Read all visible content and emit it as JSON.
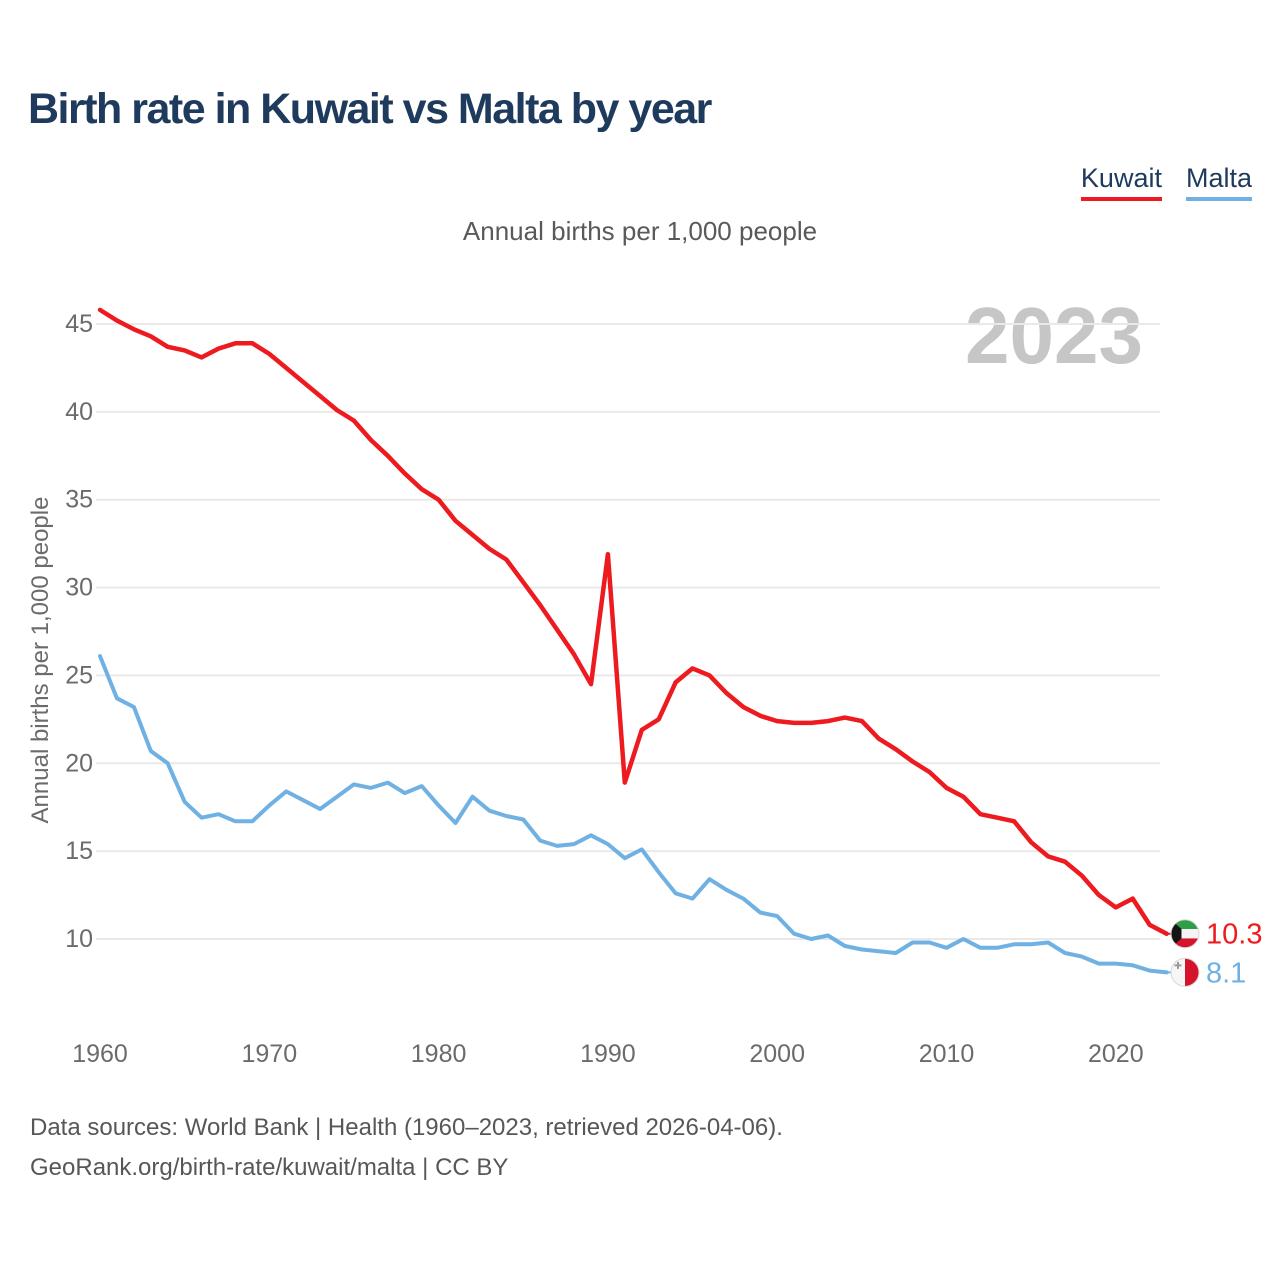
{
  "title": "Birth rate in Kuwait vs Malta by year",
  "subtitle": "Annual births per 1,000 people",
  "watermark": "2023",
  "legend": {
    "kuwait_label": "Kuwait",
    "malta_label": "Malta"
  },
  "footer": {
    "line1": "Data sources: World Bank | Health (1960–2023, retrieved 2026-04-06).",
    "line2": "GeoRank.org/birth-rate/kuwait/malta | CC BY"
  },
  "colors": {
    "kuwait_red": "#ed1b1f",
    "malta_blue": "#6fb1e3",
    "title_navy": "#1e3a5c",
    "axis_gray": "#6b6b6b",
    "grid_gray": "#e9e9e9",
    "watermark_gray": "#c6c6c6"
  },
  "chart_data": {
    "type": "line",
    "title": "Birth rate in Kuwait vs Malta by year",
    "ylabel": "Annual births per 1,000 people",
    "xlabel": "",
    "grid": true,
    "legend_position": "top-right",
    "xlim": [
      1960,
      2023
    ],
    "ylim": [
      8,
      46.5
    ],
    "x_ticks": [
      1960,
      1970,
      1980,
      1990,
      2000,
      2010,
      2020
    ],
    "y_ticks": [
      10,
      15,
      20,
      25,
      30,
      35,
      40,
      45
    ],
    "x": [
      1960,
      1961,
      1962,
      1963,
      1964,
      1965,
      1966,
      1967,
      1968,
      1969,
      1970,
      1971,
      1972,
      1973,
      1974,
      1975,
      1976,
      1977,
      1978,
      1979,
      1980,
      1981,
      1982,
      1983,
      1984,
      1985,
      1986,
      1987,
      1988,
      1989,
      1990,
      1991,
      1992,
      1993,
      1994,
      1995,
      1996,
      1997,
      1998,
      1999,
      2000,
      2001,
      2002,
      2003,
      2004,
      2005,
      2006,
      2007,
      2008,
      2009,
      2010,
      2011,
      2012,
      2013,
      2014,
      2015,
      2016,
      2017,
      2018,
      2019,
      2020,
      2021,
      2022,
      2023
    ],
    "series": [
      {
        "name": "Kuwait",
        "color": "#ed1b1f",
        "end_label": "10.3",
        "flag": "kuwait",
        "values": [
          45.8,
          45.2,
          44.7,
          44.3,
          43.7,
          43.5,
          43.1,
          43.6,
          43.9,
          43.9,
          43.3,
          42.5,
          41.7,
          40.9,
          40.1,
          39.5,
          38.4,
          37.5,
          36.5,
          35.6,
          35.0,
          33.8,
          33.0,
          32.2,
          31.6,
          30.3,
          29.0,
          27.6,
          26.2,
          24.5,
          31.9,
          18.9,
          21.9,
          22.5,
          24.6,
          25.4,
          25.0,
          24.0,
          23.2,
          22.7,
          22.4,
          22.3,
          22.3,
          22.4,
          22.6,
          22.4,
          21.4,
          20.8,
          20.1,
          19.5,
          18.6,
          18.1,
          17.1,
          16.9,
          16.7,
          15.5,
          14.7,
          14.4,
          13.6,
          12.5,
          11.8,
          12.3,
          10.8,
          10.3
        ]
      },
      {
        "name": "Malta",
        "color": "#6fb1e3",
        "end_label": "8.1",
        "flag": "malta",
        "values": [
          26.1,
          23.7,
          23.2,
          20.7,
          20.0,
          17.8,
          16.9,
          17.1,
          16.7,
          16.7,
          17.6,
          18.4,
          17.9,
          17.4,
          18.1,
          18.8,
          18.6,
          18.9,
          18.3,
          18.7,
          17.6,
          16.6,
          18.1,
          17.3,
          17.0,
          16.8,
          15.6,
          15.3,
          15.4,
          15.9,
          15.4,
          14.6,
          15.1,
          13.8,
          12.6,
          12.3,
          13.4,
          12.8,
          12.3,
          11.5,
          11.3,
          10.3,
          10.0,
          10.2,
          9.6,
          9.4,
          9.3,
          9.2,
          9.8,
          9.8,
          9.5,
          10.0,
          9.5,
          9.5,
          9.7,
          9.7,
          9.8,
          9.2,
          9.0,
          8.6,
          8.6,
          8.5,
          8.2,
          8.1
        ]
      }
    ]
  }
}
